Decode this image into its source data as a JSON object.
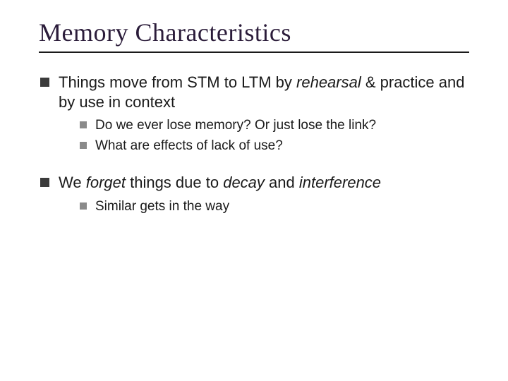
{
  "title": "Memory Characteristics",
  "title_color": "#2b1c3a",
  "title_fontsize": 36,
  "rule_color": "#1a1a1a",
  "body_fontsize": 22,
  "sub_fontsize": 19,
  "bullet_color": "#3b3b3b",
  "sub_bullet_color": "#8a8a8a",
  "background_color": "#ffffff",
  "bullets": [
    {
      "runs": [
        {
          "t": "Things move from STM to LTM by "
        },
        {
          "t": "rehearsal",
          "italic": true
        },
        {
          "t": " & practice and by use in context"
        }
      ],
      "sub": [
        {
          "runs": [
            {
              "t": "Do we ever lose memory?  Or just lose the link?"
            }
          ]
        },
        {
          "runs": [
            {
              "t": "What are effects of lack of use?"
            }
          ]
        }
      ]
    },
    {
      "runs": [
        {
          "t": "We "
        },
        {
          "t": "forget",
          "italic": true
        },
        {
          "t": " things due to "
        },
        {
          "t": "decay",
          "italic": true
        },
        {
          "t": " and "
        },
        {
          "t": "interference",
          "italic": true
        }
      ],
      "sub": [
        {
          "runs": [
            {
              "t": "Similar gets in the way"
            }
          ]
        }
      ]
    }
  ]
}
